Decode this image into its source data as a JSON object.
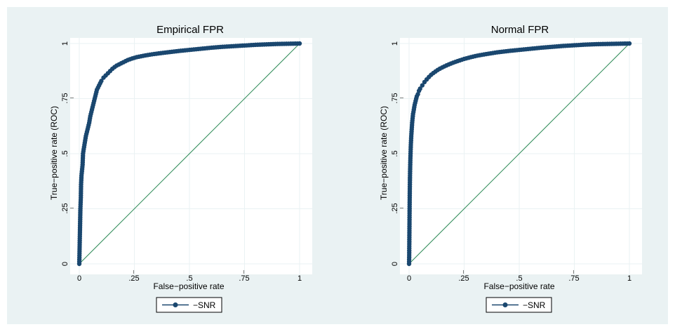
{
  "chart_data": [
    {
      "type": "line",
      "title": "Empirical FPR",
      "xlabel": "False−positive rate",
      "ylabel": "True−positive rate (ROC)",
      "xlim": [
        0,
        1
      ],
      "ylim": [
        0,
        1
      ],
      "xticks": [
        0,
        0.25,
        0.5,
        0.75,
        1
      ],
      "xtick_labels": [
        "0",
        ".25",
        ".5",
        ".75",
        "1"
      ],
      "yticks": [
        0,
        0.25,
        0.5,
        0.75,
        1
      ],
      "ytick_labels": [
        "0",
        ".25",
        ".5",
        ".75",
        "1"
      ],
      "grid": true,
      "legend": "bottom",
      "colors": {
        "series": "#1a476f",
        "reference": "#2e8b57",
        "grid": "#eaf2f3",
        "plot_bg": "#ffffff",
        "outer_bg": "#eaf2f3"
      },
      "series": [
        {
          "name": "−SNR",
          "x": [
            0,
            0.005,
            0.007,
            0.008,
            0.01,
            0.012,
            0.015,
            0.017,
            0.02,
            0.025,
            0.03,
            0.035,
            0.04,
            0.045,
            0.05,
            0.055,
            0.06,
            0.065,
            0.07,
            0.075,
            0.08,
            0.085,
            0.09,
            0.1,
            0.11,
            0.12,
            0.13,
            0.14,
            0.15,
            0.16,
            0.17,
            0.18,
            0.19,
            0.2,
            0.22,
            0.24,
            0.26,
            0.28,
            0.3,
            0.33,
            0.36,
            0.4,
            0.45,
            0.5,
            0.55,
            0.6,
            0.65,
            0.7,
            0.75,
            0.8,
            0.85,
            0.9,
            0.95,
            1.0
          ],
          "y": [
            0,
            0.25,
            0.3,
            0.36,
            0.4,
            0.42,
            0.45,
            0.5,
            0.52,
            0.55,
            0.58,
            0.6,
            0.62,
            0.64,
            0.67,
            0.69,
            0.71,
            0.73,
            0.75,
            0.77,
            0.79,
            0.8,
            0.81,
            0.83,
            0.845,
            0.855,
            0.865,
            0.875,
            0.885,
            0.893,
            0.9,
            0.905,
            0.91,
            0.915,
            0.925,
            0.932,
            0.938,
            0.942,
            0.946,
            0.951,
            0.955,
            0.96,
            0.966,
            0.971,
            0.976,
            0.981,
            0.985,
            0.988,
            0.991,
            0.994,
            0.996,
            0.998,
            0.999,
            1.0
          ]
        }
      ],
      "reference_line": {
        "x": [
          0,
          1
        ],
        "y": [
          0,
          1
        ]
      }
    },
    {
      "type": "line",
      "title": "Normal FPR",
      "xlabel": "False−positive rate",
      "ylabel": "True−positive rate (ROC)",
      "xlim": [
        0,
        1
      ],
      "ylim": [
        0,
        1
      ],
      "xticks": [
        0,
        0.25,
        0.5,
        0.75,
        1
      ],
      "xtick_labels": [
        "0",
        ".25",
        ".5",
        ".75",
        "1"
      ],
      "yticks": [
        0,
        0.25,
        0.5,
        0.75,
        1
      ],
      "ytick_labels": [
        "0",
        ".25",
        ".5",
        ".75",
        "1"
      ],
      "grid": true,
      "legend": "bottom",
      "colors": {
        "series": "#1a476f",
        "reference": "#2e8b57",
        "grid": "#eaf2f3",
        "plot_bg": "#ffffff",
        "outer_bg": "#eaf2f3"
      },
      "series": [
        {
          "name": "−SNR",
          "x": [
            0,
            0.0005,
            0.001,
            0.0015,
            0.002,
            0.0025,
            0.003,
            0.0035,
            0.004,
            0.005,
            0.006,
            0.007,
            0.008,
            0.009,
            0.01,
            0.012,
            0.014,
            0.016,
            0.018,
            0.02,
            0.025,
            0.03,
            0.035,
            0.04,
            0.045,
            0.05,
            0.06,
            0.07,
            0.08,
            0.09,
            0.1,
            0.11,
            0.12,
            0.13,
            0.14,
            0.15,
            0.16,
            0.18,
            0.2,
            0.22,
            0.25,
            0.28,
            0.31,
            0.35,
            0.4,
            0.45,
            0.5,
            0.55,
            0.6,
            0.65,
            0.7,
            0.75,
            0.8,
            0.85,
            0.9,
            0.95,
            1.0
          ],
          "y": [
            0,
            0.03,
            0.08,
            0.14,
            0.2,
            0.26,
            0.31,
            0.35,
            0.39,
            0.44,
            0.48,
            0.51,
            0.54,
            0.56,
            0.58,
            0.61,
            0.64,
            0.66,
            0.68,
            0.69,
            0.72,
            0.74,
            0.76,
            0.77,
            0.785,
            0.795,
            0.81,
            0.825,
            0.837,
            0.848,
            0.858,
            0.866,
            0.873,
            0.88,
            0.886,
            0.891,
            0.896,
            0.905,
            0.913,
            0.92,
            0.93,
            0.938,
            0.945,
            0.952,
            0.96,
            0.966,
            0.971,
            0.976,
            0.981,
            0.985,
            0.989,
            0.992,
            0.995,
            0.997,
            0.998,
            0.999,
            1.0
          ]
        }
      ],
      "reference_line": {
        "x": [
          0,
          1
        ],
        "y": [
          0,
          1
        ]
      }
    }
  ]
}
